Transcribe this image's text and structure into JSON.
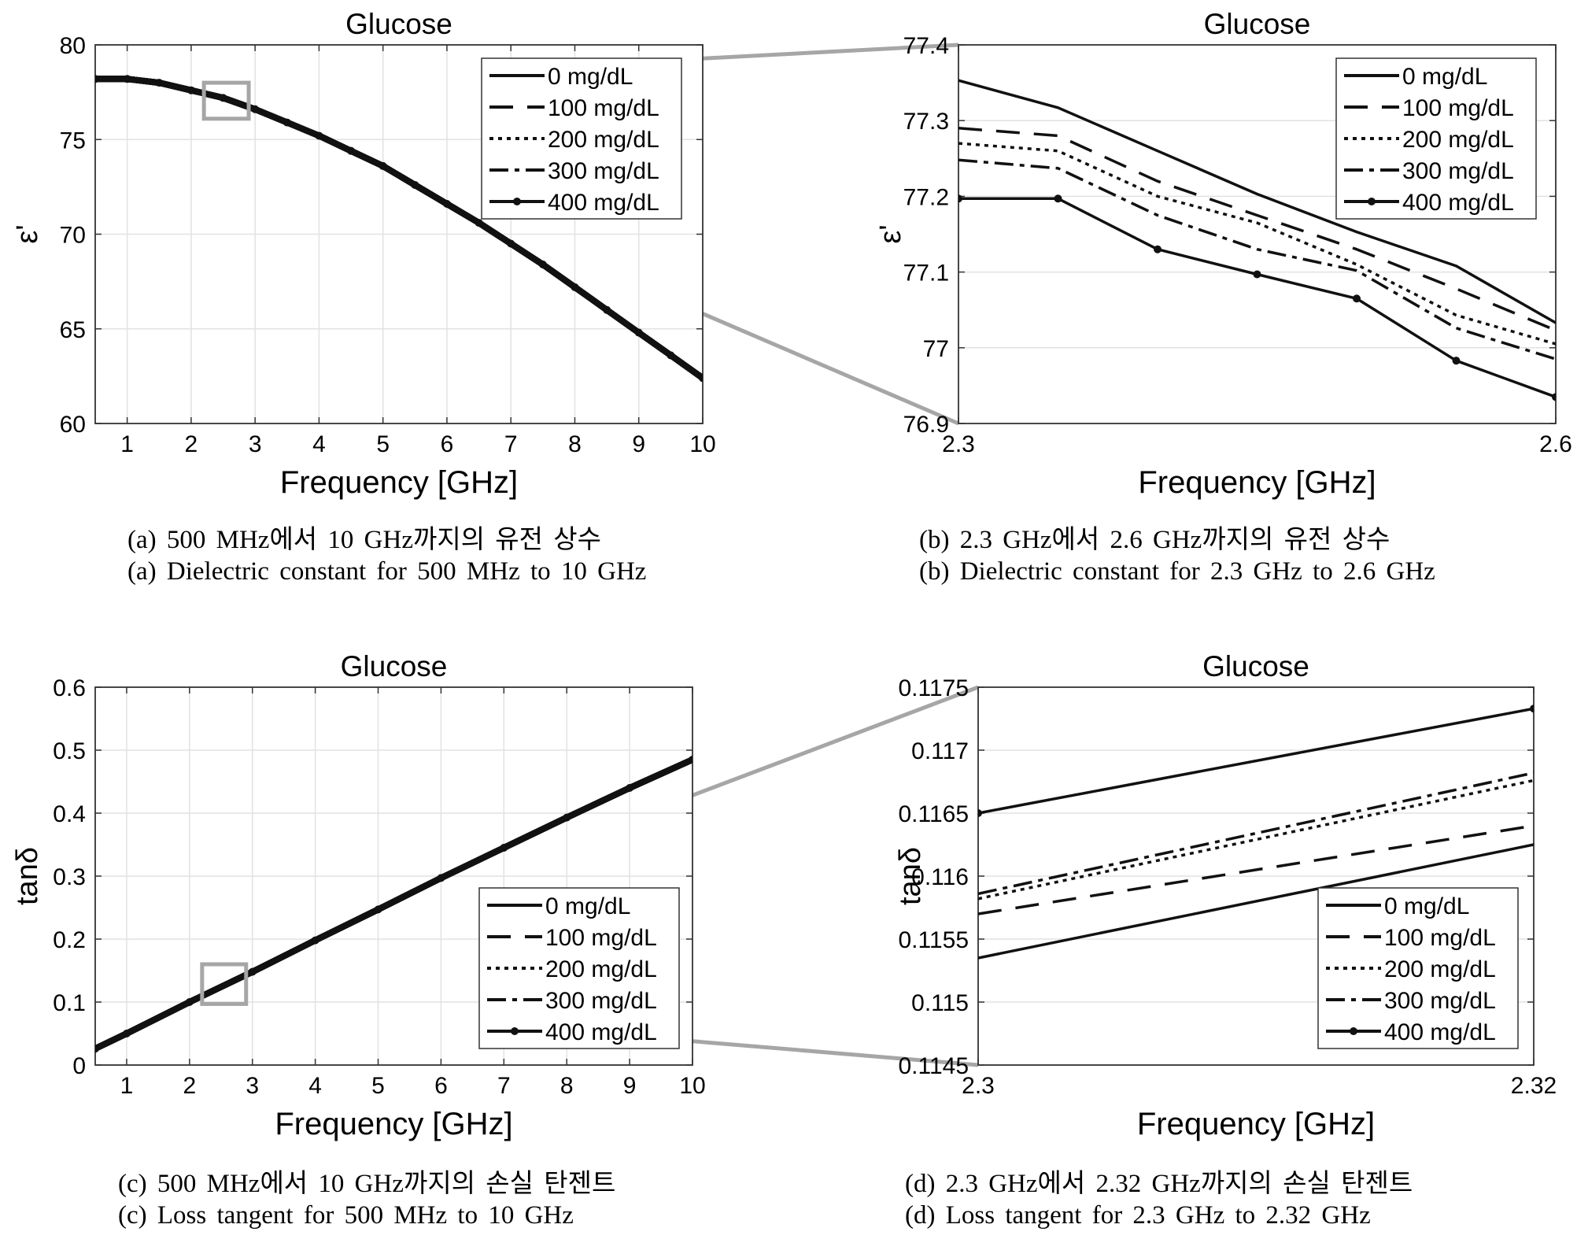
{
  "legend": [
    "0 mg/dL",
    "100 mg/dL",
    "200 mg/dL",
    "300 mg/dL",
    "400 mg/dL"
  ],
  "captions": {
    "a_ko": "(a) 500 MHz에서 10 GHz까지의 유전 상수",
    "a_en": "(a) Dielectric constant for 500 MHz to 10 GHz",
    "b_ko": "(b) 2.3 GHz에서 2.6 GHz까지의 유전 상수",
    "b_en": "(b) Dielectric constant for 2.3 GHz to 2.6 GHz",
    "c_ko": "(c) 500 MHz에서 10 GHz까지의 손실 탄젠트",
    "c_en": "(c) Loss tangent for 500 MHz to 10 GHz",
    "d_ko": "(d) 2.3 GHz에서 2.32 GHz까지의 손실 탄젠트",
    "d_en": "(d) Loss tangent for 2.3 GHz to 2.32 GHz"
  },
  "chart_data": [
    {
      "type": "line",
      "title": "Glucose",
      "xlabel": "Frequency [GHz]",
      "ylabel": "ε'",
      "xlim": [
        0.5,
        10
      ],
      "ylim": [
        60,
        80
      ],
      "xticks": [
        "1",
        "2",
        "3",
        "4",
        "5",
        "6",
        "7",
        "8",
        "9",
        "10"
      ],
      "yticks": [
        "60",
        "65",
        "70",
        "75",
        "80"
      ],
      "grid": true,
      "legend_position": "top-right",
      "zoom_region": {
        "x": [
          2.2,
          2.9
        ],
        "y": [
          76.1,
          78
        ]
      },
      "x": [
        0.5,
        1,
        1.5,
        2,
        2.5,
        3,
        3.5,
        4,
        4.5,
        5,
        5.5,
        6,
        6.5,
        7,
        7.5,
        8,
        8.5,
        9,
        9.5,
        10
      ],
      "series": [
        {
          "name": "0 mg/dL",
          "values": [
            78.2,
            78.2,
            78.0,
            77.6,
            77.2,
            76.6,
            75.9,
            75.2,
            74.4,
            73.6,
            72.6,
            71.6,
            70.6,
            69.5,
            68.4,
            67.2,
            66.0,
            64.8,
            63.6,
            62.4
          ]
        },
        {
          "name": "100 mg/dL",
          "values": [
            78.2,
            78.2,
            78.0,
            77.6,
            77.2,
            76.6,
            75.9,
            75.2,
            74.4,
            73.6,
            72.6,
            71.6,
            70.6,
            69.5,
            68.4,
            67.2,
            66.0,
            64.8,
            63.6,
            62.4
          ]
        },
        {
          "name": "200 mg/dL",
          "values": [
            78.2,
            78.2,
            78.0,
            77.6,
            77.2,
            76.6,
            75.9,
            75.2,
            74.4,
            73.6,
            72.6,
            71.6,
            70.6,
            69.5,
            68.4,
            67.2,
            66.0,
            64.8,
            63.6,
            62.4
          ]
        },
        {
          "name": "300 mg/dL",
          "values": [
            78.2,
            78.2,
            78.0,
            77.6,
            77.2,
            76.6,
            75.9,
            75.2,
            74.4,
            73.6,
            72.6,
            71.6,
            70.6,
            69.5,
            68.4,
            67.2,
            66.0,
            64.8,
            63.6,
            62.4
          ]
        },
        {
          "name": "400 mg/dL",
          "values": [
            78.2,
            78.2,
            78.0,
            77.6,
            77.2,
            76.6,
            75.9,
            75.2,
            74.4,
            73.6,
            72.6,
            71.6,
            70.6,
            69.5,
            68.4,
            67.2,
            66.0,
            64.8,
            63.6,
            62.4
          ]
        }
      ]
    },
    {
      "type": "line",
      "title": "Glucose",
      "xlabel": "Frequency [GHz]",
      "ylabel": "ε'",
      "xlim": [
        2.3,
        2.6
      ],
      "ylim": [
        76.9,
        77.4
      ],
      "xticks": [
        "2.3",
        "2.6"
      ],
      "yticks": [
        "76.9",
        "77",
        "77.1",
        "77.2",
        "77.3",
        "77.4"
      ],
      "grid": true,
      "legend_position": "top-right",
      "x": [
        2.3,
        2.35,
        2.4,
        2.45,
        2.5,
        2.55,
        2.6
      ],
      "series": [
        {
          "name": "0 mg/dL",
          "values": [
            77.353,
            77.317,
            77.26,
            77.203,
            77.153,
            77.108,
            77.033
          ]
        },
        {
          "name": "100 mg/dL",
          "values": [
            77.29,
            77.28,
            77.22,
            77.175,
            77.13,
            77.078,
            77.023
          ]
        },
        {
          "name": "200 mg/dL",
          "values": [
            77.27,
            77.26,
            77.2,
            77.165,
            77.11,
            77.043,
            77.005
          ]
        },
        {
          "name": "300 mg/dL",
          "values": [
            77.248,
            77.237,
            77.175,
            77.13,
            77.102,
            77.026,
            76.985
          ]
        },
        {
          "name": "400 mg/dL",
          "values": [
            77.197,
            77.197,
            77.13,
            77.097,
            77.065,
            76.983,
            76.935
          ]
        }
      ]
    },
    {
      "type": "line",
      "title": "Glucose",
      "xlabel": "Frequency [GHz]",
      "ylabel": "tanδ",
      "xlim": [
        0.5,
        10
      ],
      "ylim": [
        0,
        0.6
      ],
      "xticks": [
        "1",
        "2",
        "3",
        "4",
        "5",
        "6",
        "7",
        "8",
        "9",
        "10"
      ],
      "yticks": [
        "0",
        "0.1",
        "0.2",
        "0.3",
        "0.4",
        "0.5",
        "0.6"
      ],
      "grid": true,
      "legend_position": "bottom-right",
      "zoom_region": {
        "x": [
          2.2,
          2.9
        ],
        "y": [
          0.097,
          0.16
        ]
      },
      "x": [
        0.5,
        1,
        2,
        3,
        4,
        5,
        6,
        7,
        8,
        9,
        10
      ],
      "series": [
        {
          "name": "0 mg/dL",
          "values": [
            0.026,
            0.05,
            0.1,
            0.148,
            0.198,
            0.247,
            0.297,
            0.345,
            0.393,
            0.44,
            0.485
          ]
        },
        {
          "name": "100 mg/dL",
          "values": [
            0.026,
            0.05,
            0.1,
            0.148,
            0.198,
            0.247,
            0.297,
            0.345,
            0.393,
            0.44,
            0.485
          ]
        },
        {
          "name": "200 mg/dL",
          "values": [
            0.026,
            0.05,
            0.1,
            0.148,
            0.198,
            0.247,
            0.297,
            0.345,
            0.393,
            0.44,
            0.485
          ]
        },
        {
          "name": "300 mg/dL",
          "values": [
            0.026,
            0.05,
            0.1,
            0.148,
            0.198,
            0.247,
            0.297,
            0.345,
            0.393,
            0.44,
            0.485
          ]
        },
        {
          "name": "400 mg/dL",
          "values": [
            0.026,
            0.05,
            0.1,
            0.148,
            0.198,
            0.247,
            0.297,
            0.345,
            0.393,
            0.44,
            0.485
          ]
        }
      ]
    },
    {
      "type": "line",
      "title": "Glucose",
      "xlabel": "Frequency [GHz]",
      "ylabel": "tanδ",
      "xlim": [
        2.3,
        2.32
      ],
      "ylim": [
        0.1145,
        0.1175
      ],
      "xticks": [
        "2.3",
        "2.32"
      ],
      "yticks": [
        "0.1145",
        "0.115",
        "0.1155",
        "0.116",
        "0.1165",
        "0.117",
        "0.1175"
      ],
      "grid": true,
      "legend_position": "bottom-right",
      "x": [
        2.3,
        2.32
      ],
      "series": [
        {
          "name": "0 mg/dL",
          "values": [
            0.11535,
            0.11625
          ]
        },
        {
          "name": "100 mg/dL",
          "values": [
            0.1157,
            0.1164
          ]
        },
        {
          "name": "200 mg/dL",
          "values": [
            0.11582,
            0.11676
          ]
        },
        {
          "name": "300 mg/dL",
          "values": [
            0.11586,
            0.11682
          ]
        },
        {
          "name": "400 mg/dL",
          "values": [
            0.1165,
            0.11733
          ]
        }
      ]
    }
  ]
}
